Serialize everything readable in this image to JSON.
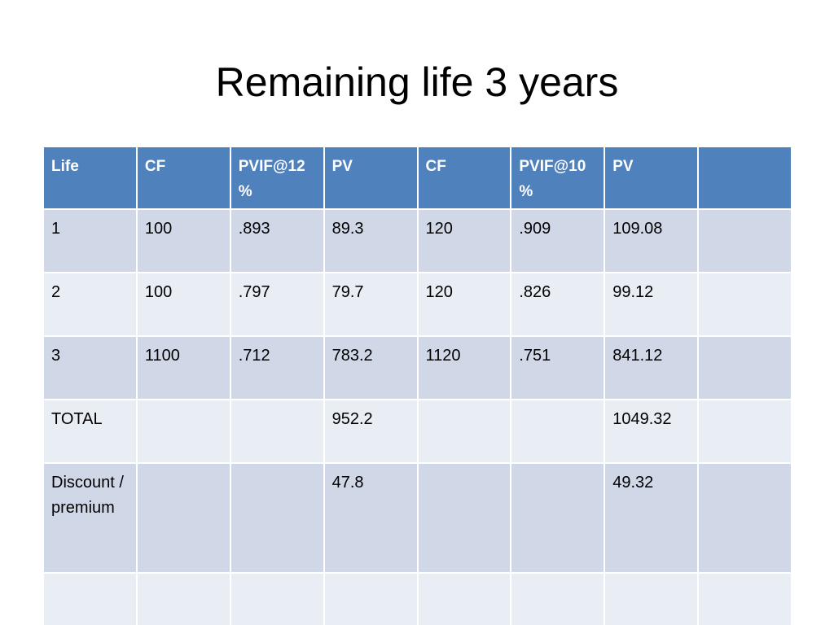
{
  "title": "Remaining life 3 years",
  "table": {
    "header": [
      "Life",
      "CF",
      "PVIF@12%",
      "PV",
      "CF",
      "PVIF@10%",
      "PV",
      null
    ],
    "rows": [
      [
        "1",
        "100",
        ".893",
        "89.3",
        "120",
        ".909",
        "109.08",
        null
      ],
      [
        "2",
        "100",
        ".797",
        "79.7",
        "120",
        ".826",
        "99.12",
        null
      ],
      [
        "3",
        "1100",
        ".712",
        "783.2",
        "1120",
        ".751",
        "841.12",
        null
      ],
      [
        "TOTAL",
        null,
        null,
        "952.2",
        null,
        null,
        "1049.32",
        null
      ],
      [
        "Discount / premium",
        null,
        null,
        "47.8",
        null,
        null,
        "49.32",
        null
      ],
      [
        null,
        null,
        null,
        null,
        null,
        null,
        null,
        null
      ]
    ]
  }
}
